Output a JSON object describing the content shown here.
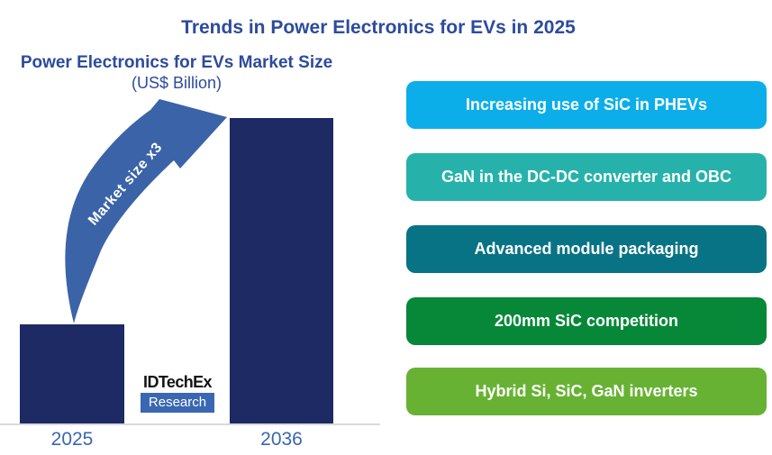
{
  "page": {
    "title": "Trends in Power Electronics for EVs in 2025"
  },
  "chart": {
    "title": "Power Electronics for EVs Market Size",
    "units_label": "(US$ Billion)",
    "arrow_label": "Market size x3",
    "logo": {
      "line1": "IDTechEx",
      "line2": "Research"
    }
  },
  "chart_data": {
    "type": "bar",
    "title": "Power Electronics for EVs Market Size (US$ Billion)",
    "categories": [
      "2025",
      "2036"
    ],
    "values_relative": [
      1,
      3.1
    ],
    "annotation": "Market size x3 (2025 to 2036)",
    "value_axis_shown": false,
    "bar_color": "#1e2a64",
    "grid": false
  },
  "trends": {
    "items": [
      {
        "label": "Increasing use of SiC in PHEVs",
        "color": "#0caee9"
      },
      {
        "label": "GaN in the DC-DC converter and OBC",
        "color": "#26b2ab"
      },
      {
        "label": "Advanced module packaging",
        "color": "#087385"
      },
      {
        "label": "200mm SiC competition",
        "color": "#068838"
      },
      {
        "label": "Hybrid Si, SiC, GaN inverters",
        "color": "#67b233"
      }
    ]
  },
  "colors": {
    "title_blue": "#2d4b9d",
    "axis_label_blue": "#3a66ad",
    "arrow_blue": "#3a63a8",
    "logo_box_blue": "#3a67b1",
    "axis_line_gray": "#d9d9d9"
  }
}
